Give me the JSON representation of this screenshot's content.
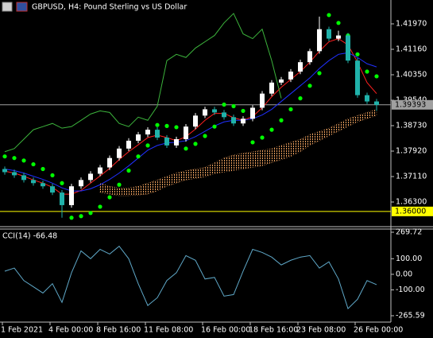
{
  "chart_data": [
    {
      "type": "candlestick",
      "title": "GBPUSD, H4:  Pound Sterling vs US Dollar",
      "categories": [
        "1 Feb 2021",
        null,
        null,
        null,
        null,
        "4 Feb 00:00",
        null,
        null,
        null,
        null,
        "8 Feb 16:00",
        null,
        null,
        null,
        null,
        "11 Feb 08:00",
        null,
        null,
        null,
        null,
        null,
        "16 Feb 00:00",
        null,
        null,
        null,
        null,
        "18 Feb 16:00",
        null,
        null,
        null,
        null,
        "23 Feb 08:00",
        null,
        null,
        null,
        null,
        null,
        "26 Feb 00:00",
        null,
        null
      ],
      "open": [
        1.3735,
        1.3725,
        1.3715,
        1.37,
        1.369,
        1.368,
        1.366,
        1.362,
        1.368,
        1.37,
        1.372,
        1.374,
        1.377,
        1.38,
        1.3825,
        1.3845,
        1.386,
        1.3835,
        1.381,
        1.383,
        1.387,
        1.3905,
        1.3925,
        1.3915,
        1.39,
        1.388,
        1.3895,
        1.393,
        1.3975,
        1.401,
        1.402,
        1.4045,
        1.4075,
        1.411,
        1.418,
        1.415,
        1.416,
        1.408,
        1.397,
        1.395
      ],
      "high": [
        1.3743,
        1.3733,
        1.3723,
        1.3708,
        1.3698,
        1.3688,
        1.3668,
        1.3688,
        1.3708,
        1.3728,
        1.3748,
        1.3778,
        1.3808,
        1.3833,
        1.3853,
        1.3868,
        1.3868,
        1.3843,
        1.3838,
        1.3878,
        1.3913,
        1.3933,
        1.3933,
        1.3923,
        1.3908,
        1.3903,
        1.3938,
        1.3983,
        1.4018,
        1.4028,
        1.4053,
        1.4083,
        1.4118,
        1.422,
        1.4188,
        1.4175,
        1.4168,
        1.4088,
        1.3978,
        1.3958
      ],
      "low": [
        1.3717,
        1.3707,
        1.3692,
        1.3682,
        1.3672,
        1.3652,
        1.358,
        1.3612,
        1.3672,
        1.3692,
        1.3712,
        1.3732,
        1.3762,
        1.3792,
        1.3817,
        1.3837,
        1.3827,
        1.3802,
        1.3802,
        1.3822,
        1.3862,
        1.3897,
        1.3907,
        1.3892,
        1.3872,
        1.3872,
        1.3887,
        1.3922,
        1.3967,
        1.4002,
        1.4012,
        1.4037,
        1.4067,
        1.4102,
        1.4142,
        1.4142,
        1.4072,
        1.3962,
        1.3942,
        1.392
      ],
      "close": [
        1.3725,
        1.3715,
        1.37,
        1.369,
        1.368,
        1.366,
        1.362,
        1.368,
        1.37,
        1.372,
        1.374,
        1.377,
        1.38,
        1.3825,
        1.3845,
        1.386,
        1.3835,
        1.381,
        1.383,
        1.387,
        1.3905,
        1.3925,
        1.3915,
        1.39,
        1.388,
        1.3895,
        1.393,
        1.3975,
        1.401,
        1.402,
        1.4045,
        1.4075,
        1.411,
        1.418,
        1.415,
        1.416,
        1.408,
        1.397,
        1.395,
        1.3939
      ],
      "up_color": "#ffffff",
      "down_color": "#20b2aa",
      "series": [
        {
          "color": "#ff2020",
          "values": [
            1.3728,
            1.3722,
            1.3712,
            1.37,
            1.369,
            1.3677,
            1.3655,
            1.3655,
            1.3667,
            1.369,
            1.3713,
            1.3737,
            1.3765,
            1.379,
            1.3812,
            1.3835,
            1.3843,
            1.3835,
            1.3825,
            1.3838,
            1.3862,
            1.389,
            1.3912,
            1.3912,
            1.3898,
            1.389,
            1.3902,
            1.393,
            1.3965,
            1.3995,
            1.402,
            1.4045,
            1.4075,
            1.411,
            1.414,
            1.415,
            1.413,
            1.4075,
            1.401,
            1.3975
          ]
        },
        {
          "color": "#2030ff",
          "values": [
            1.3735,
            1.373,
            1.3722,
            1.3712,
            1.3702,
            1.369,
            1.3675,
            1.3665,
            1.3665,
            1.3672,
            1.3685,
            1.3702,
            1.3722,
            1.3745,
            1.377,
            1.3795,
            1.381,
            1.3818,
            1.382,
            1.3825,
            1.3838,
            1.3855,
            1.3872,
            1.3885,
            1.389,
            1.389,
            1.3895,
            1.3907,
            1.3925,
            1.395,
            1.3975,
            1.4,
            1.4025,
            1.4055,
            1.408,
            1.41,
            1.4105,
            1.409,
            1.407,
            1.406
          ]
        },
        {
          "color": "#3cb43c",
          "values": [
            1.379,
            1.38,
            1.383,
            1.386,
            1.387,
            1.388,
            1.3865,
            1.387,
            1.389,
            1.391,
            1.392,
            1.3915,
            1.388,
            1.387,
            1.39,
            1.389,
            1.3935,
            1.408,
            1.41,
            1.409,
            1.412,
            1.414,
            1.416,
            1.42,
            1.423,
            1.4165,
            1.415,
            1.418,
            1.408,
            1.396,
            null,
            null,
            null,
            null,
            null,
            null,
            null,
            null,
            null,
            null
          ]
        },
        {
          "color": "#00ff00",
          "style": "dots",
          "values": [
            1.3775,
            1.377,
            1.3762,
            1.375,
            1.3735,
            1.3715,
            1.369,
            1.358,
            1.3585,
            1.3595,
            1.3615,
            1.3645,
            1.3685,
            1.373,
            1.3775,
            1.381,
            1.3875,
            1.3872,
            1.3868,
            1.38,
            1.3815,
            1.384,
            1.387,
            1.394,
            1.3935,
            1.392,
            1.382,
            1.3835,
            1.386,
            1.389,
            1.3925,
            1.396,
            1.4,
            1.404,
            1.4225,
            1.42,
            1.416,
            1.41,
            1.4045,
            1.403
          ]
        }
      ],
      "cloud": {
        "color": "#f4a460",
        "upper": [
          null,
          null,
          null,
          null,
          null,
          null,
          null,
          null,
          null,
          null,
          1.369,
          1.368,
          1.3675,
          1.3675,
          1.368,
          1.369,
          1.37,
          1.3712,
          1.3722,
          1.373,
          1.3735,
          1.374,
          1.3755,
          1.377,
          1.378,
          1.3785,
          1.379,
          1.3795,
          1.38,
          1.381,
          1.382,
          1.383,
          1.3845,
          1.3855,
          1.3865,
          1.388,
          1.3895,
          1.3905,
          1.3915,
          1.3925
        ],
        "lower": [
          null,
          null,
          null,
          null,
          null,
          null,
          null,
          null,
          null,
          null,
          1.366,
          1.3655,
          1.365,
          1.365,
          1.3652,
          1.3655,
          1.3665,
          1.368,
          1.369,
          1.37,
          1.3705,
          1.371,
          1.372,
          1.3725,
          1.373,
          1.3735,
          1.374,
          1.3745,
          1.3755,
          1.3765,
          1.3775,
          1.379,
          1.381,
          1.3825,
          1.384,
          1.3855,
          1.387,
          1.3885,
          1.3895,
          1.3905
        ]
      },
      "ylim": [
        1.35515,
        1.42729
      ],
      "yticks": [
        {
          "value": 1.4197,
          "label": "1.41970"
        },
        {
          "value": 1.4116,
          "label": "1.41160"
        },
        {
          "value": 1.4035,
          "label": "1.40350"
        },
        {
          "value": 1.3954,
          "label": "1.39540"
        },
        {
          "value": 1.3873,
          "label": "1.38730"
        },
        {
          "value": 1.3792,
          "label": "1.37920"
        },
        {
          "value": 1.3711,
          "label": "1.37110"
        },
        {
          "value": 1.363,
          "label": "1.36300"
        }
      ],
      "price_lines": [
        {
          "value": 1.39393,
          "label": "1.39393",
          "color": "#a0a0a0"
        },
        {
          "value": 1.36,
          "label": "1.36000",
          "color": "#ffff00"
        }
      ]
    },
    {
      "type": "line",
      "title": "CCI(14) -66.48",
      "color": "#5fa8c8",
      "values": [
        20,
        40,
        -40,
        -80,
        -120,
        -60,
        -180,
        10,
        150,
        100,
        160,
        130,
        180,
        100,
        -60,
        -200,
        -150,
        -40,
        10,
        120,
        90,
        -30,
        -20,
        -140,
        -130,
        20,
        160,
        140,
        110,
        60,
        90,
        110,
        120,
        40,
        80,
        -30,
        -220,
        -160,
        -40,
        -66.48
      ],
      "ylim": [
        -265.59,
        269.72
      ],
      "yticks": [
        269.72,
        {
          "value": 100,
          "label": "100.00"
        },
        {
          "value": 0,
          "label": "0.00"
        },
        {
          "value": -100,
          "label": "-100.00"
        },
        -265.59
      ]
    }
  ]
}
